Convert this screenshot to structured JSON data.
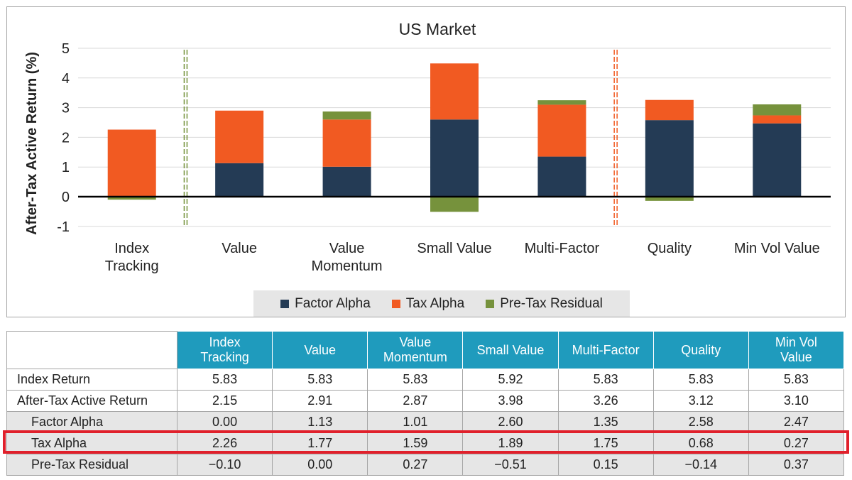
{
  "chart_data": {
    "type": "bar",
    "stacked": true,
    "title": "US Market",
    "ylabel": "After-Tax Active Return (%)",
    "xlabel": "",
    "ylim": [
      -1,
      5
    ],
    "yticks": [
      -1,
      0,
      1,
      2,
      3,
      4,
      5
    ],
    "categories": [
      "Index\nTracking",
      "Value",
      "Value\nMomentum",
      "Small Value",
      "Multi-Factor",
      "Quality",
      "Min Vol Value"
    ],
    "series": [
      {
        "name": "Factor Alpha",
        "color": "#243b55",
        "values": [
          0.0,
          1.13,
          1.01,
          2.6,
          1.35,
          2.58,
          2.47
        ]
      },
      {
        "name": "Tax Alpha",
        "color": "#f15a22",
        "values": [
          2.26,
          1.77,
          1.59,
          1.89,
          1.75,
          0.68,
          0.27
        ]
      },
      {
        "name": "Pre-Tax Residual",
        "color": "#76923c",
        "values": [
          -0.1,
          0.0,
          0.27,
          -0.51,
          0.15,
          -0.14,
          0.37
        ]
      }
    ],
    "separators": [
      {
        "after_index": 0,
        "color": "#76923c"
      },
      {
        "after_index": 4,
        "color": "#f15a22"
      }
    ],
    "legend_position": "bottom",
    "grid": true
  },
  "table": {
    "columns": [
      "Index\nTracking",
      "Value",
      "Value\nMomentum",
      "Small Value",
      "Multi-Factor",
      "Quality",
      "Min Vol\nValue"
    ],
    "rows": [
      {
        "label": "Index Return",
        "values": [
          "5.83",
          "5.83",
          "5.83",
          "5.92",
          "5.83",
          "5.83",
          "5.83"
        ]
      },
      {
        "label": "After-Tax Active Return",
        "values": [
          "2.15",
          "2.91",
          "2.87",
          "3.98",
          "3.26",
          "3.12",
          "3.10"
        ]
      },
      {
        "label": "Factor Alpha",
        "values": [
          "0.00",
          "1.13",
          "1.01",
          "2.60",
          "1.35",
          "2.58",
          "2.47"
        ]
      },
      {
        "label": "Tax Alpha",
        "values": [
          "2.26",
          "1.77",
          "1.59",
          "1.89",
          "1.75",
          "0.68",
          "0.27"
        ]
      },
      {
        "label": "Pre-Tax Residual",
        "values": [
          "−0.10",
          "0.00",
          "0.27",
          "−0.51",
          "0.15",
          "−0.14",
          "0.37"
        ]
      }
    ],
    "highlighted_row": "Tax Alpha",
    "highlight_color": "#e0202b"
  }
}
